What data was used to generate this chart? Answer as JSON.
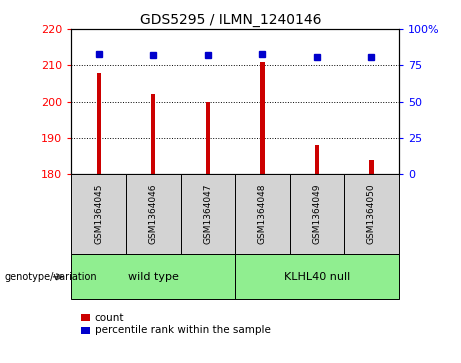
{
  "title": "GDS5295 / ILMN_1240146",
  "samples": [
    "GSM1364045",
    "GSM1364046",
    "GSM1364047",
    "GSM1364048",
    "GSM1364049",
    "GSM1364050"
  ],
  "counts": [
    208,
    202,
    200,
    211,
    188,
    184
  ],
  "percentiles": [
    83,
    82,
    82,
    83,
    81,
    81
  ],
  "ymin": 180,
  "ymax": 220,
  "yticks": [
    180,
    190,
    200,
    210,
    220
  ],
  "right_yticks": [
    0,
    25,
    50,
    75,
    100
  ],
  "right_ylabels": [
    "0",
    "25",
    "50",
    "75",
    "100%"
  ],
  "bar_color": "#cc0000",
  "dot_color": "#0000cc",
  "group1_label": "wild type",
  "group2_label": "KLHL40 null",
  "group_color": "#90ee90",
  "sample_box_color": "#d3d3d3",
  "genotype_label": "genotype/variation",
  "legend_count": "count",
  "legend_percentile": "percentile rank within the sample",
  "bar_width": 0.08,
  "title_fontsize": 10
}
